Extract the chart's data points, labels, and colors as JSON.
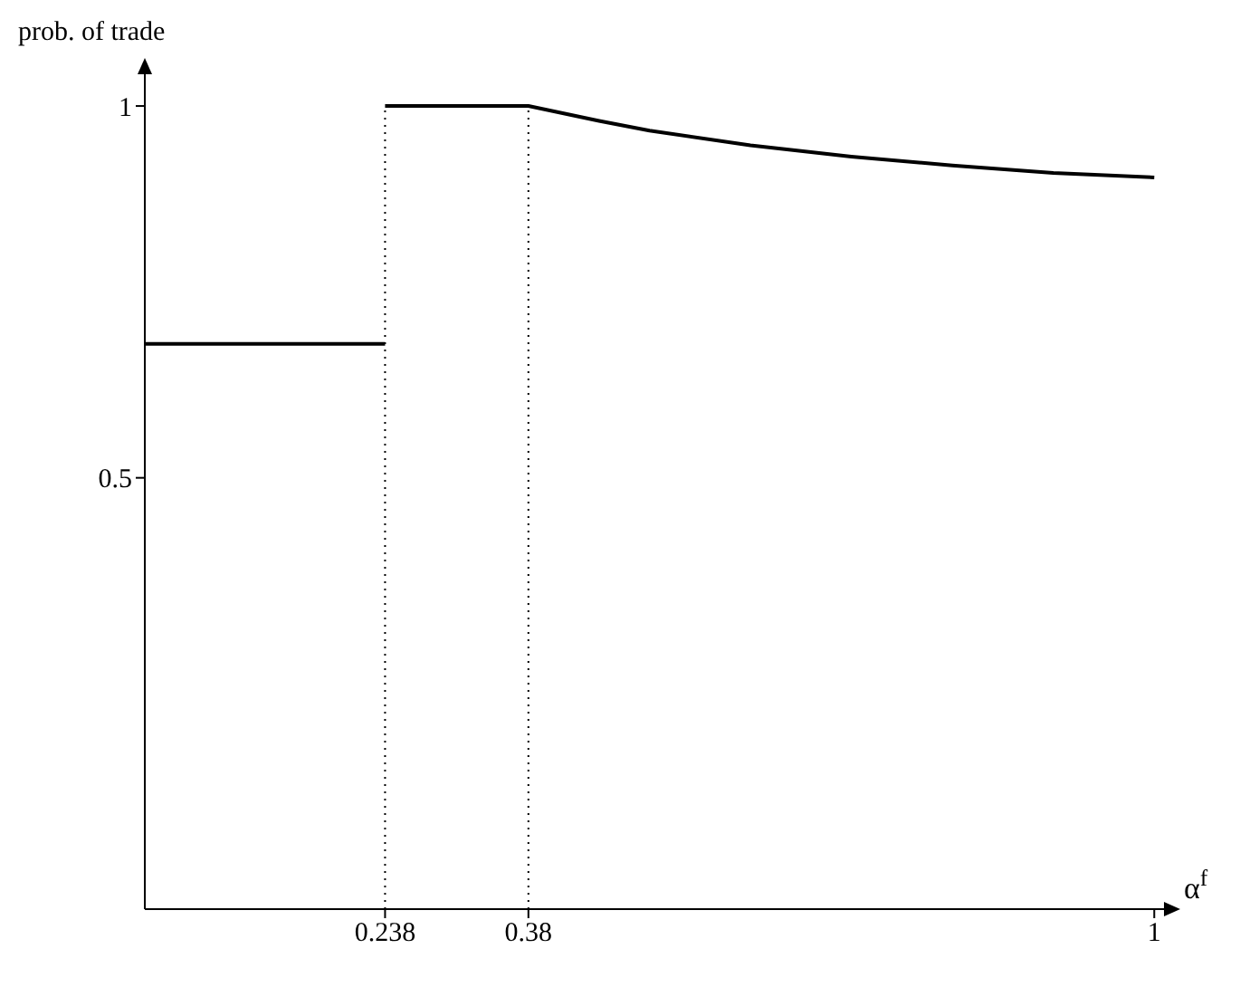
{
  "chart_data": {
    "type": "line",
    "xlabel": "α$^{f}$",
    "ylabel": "prob. of trade",
    "series": [
      {
        "color": "#000000",
        "x": [
          0,
          0.238
        ],
        "values": [
          0.68,
          0.68
        ]
      },
      {
        "color": "#000000",
        "x": [
          0.238,
          0.38,
          0.45,
          0.5,
          0.6,
          0.7,
          0.8,
          0.9,
          1
        ],
        "values": [
          1,
          1,
          0.98,
          0.967,
          0.947,
          0.932,
          0.92,
          0.91,
          0.904
        ]
      }
    ],
    "xlim": [
      0,
      1.015
    ],
    "xticks": [
      0.238,
      0.38,
      1
    ],
    "ylim": [
      -0.08,
      1.05
    ],
    "yticks": [
      0.5,
      1
    ],
    "ref_lines": [
      {
        "axis": "x",
        "value": 0.238,
        "color": "#000000",
        "line_style": "dotted"
      },
      {
        "axis": "x",
        "value": 0.38,
        "color": "#000000",
        "line_style": "dotted"
      }
    ],
    "grid": false,
    "legend": false,
    "marker": "none",
    "line_style": "solid"
  }
}
